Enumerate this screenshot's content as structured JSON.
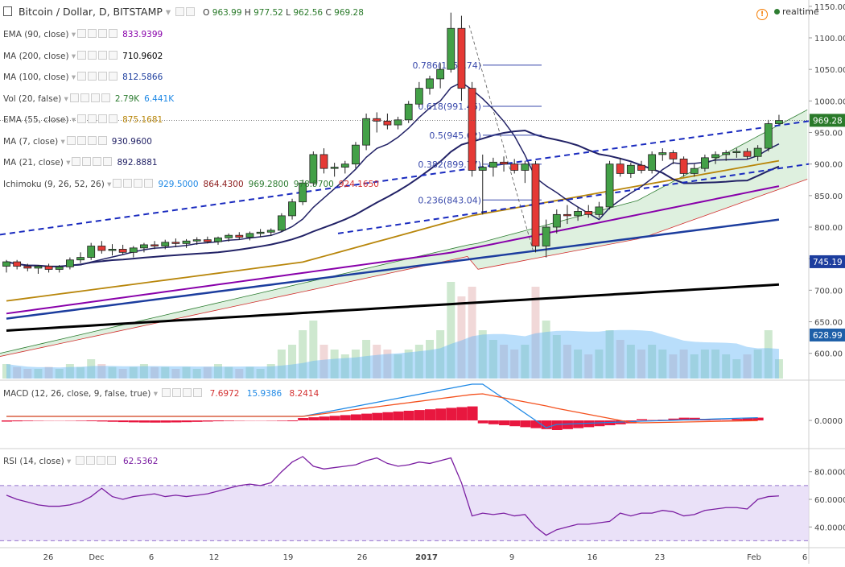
{
  "header": {
    "symbol": "Bitcoin / Dollar, D, BITSTAMP",
    "ohlc": {
      "o": "963.99",
      "h": "977.52",
      "l": "962.56",
      "c": "969.28"
    },
    "realtime": "realtime"
  },
  "indicators": [
    {
      "label": "EMA (90, close)",
      "values": [
        "833.9399"
      ],
      "colors": [
        "#8800aa"
      ]
    },
    {
      "label": "MA (200, close)",
      "values": [
        "710.9602"
      ],
      "colors": [
        "#000000"
      ]
    },
    {
      "label": "MA (100, close)",
      "values": [
        "812.5866"
      ],
      "colors": [
        "#1c3d9e"
      ]
    },
    {
      "label": "Vol (20, false)",
      "values": [
        "2.79K",
        "6.441K"
      ],
      "colors": [
        "#2e7d32",
        "#1e88e5"
      ]
    },
    {
      "label": "EMA (55, close)",
      "values": [
        "875.1681"
      ],
      "colors": [
        "#b8860b"
      ]
    },
    {
      "label": "MA (7, close)",
      "values": [
        "930.9600"
      ],
      "colors": [
        "#222266"
      ]
    },
    {
      "label": "MA (21, close)",
      "values": [
        "892.8881"
      ],
      "colors": [
        "#222266"
      ]
    },
    {
      "label": "Ichimoku (9, 26, 52, 26)",
      "values": [
        "929.5000",
        "864.4300",
        "969.2800",
        "978.9700",
        "924.1650"
      ],
      "colors": [
        "#1e88e5",
        "#8b1a1a",
        "#2e7d32",
        "#2e7d32",
        "#d32f2f"
      ]
    }
  ],
  "macd": {
    "label": "MACD (12, 26, close, 9, false, true)",
    "values": [
      "7.6972",
      "15.9386",
      "8.2414"
    ],
    "colors": [
      "#d32f2f",
      "#1e88e5",
      "#d32f2f"
    ]
  },
  "rsi": {
    "label": "RSI (14, close)",
    "value": "62.5362"
  },
  "price_axis": {
    "ticks": [
      "1150.00",
      "1100.00",
      "1050.00",
      "1000.00",
      "950.00",
      "900.00",
      "850.00",
      "800.00",
      "750.00",
      "700.00",
      "650.00",
      "600.00"
    ],
    "badges": [
      {
        "text": "969.28",
        "color": "#2a7a2a"
      },
      {
        "text": "745.19",
        "color": "#1c3d9e"
      },
      {
        "text": "628.99",
        "color": "#1e5fa8"
      }
    ]
  },
  "macd_axis": {
    "ticks": [
      "0.0000"
    ]
  },
  "rsi_axis": {
    "ticks": [
      "80.0000",
      "60.0000",
      "40.0000"
    ]
  },
  "time_axis": {
    "ticks": [
      "26",
      "Dec",
      "6",
      "12",
      "19",
      "26",
      "2017",
      "9",
      "16",
      "23",
      "Feb",
      "6"
    ]
  },
  "fib": [
    {
      "label": "0.786(1056.74)",
      "price": 1056.74
    },
    {
      "label": "0.618(991.46)",
      "price": 991.46
    },
    {
      "label": "0.5(945.62)",
      "price": 945.62
    },
    {
      "label": "0.382(899.77)",
      "price": 899.77
    },
    {
      "label": "0.236(843.04)",
      "price": 843.04
    }
  ],
  "chart_data": {
    "type": "candlestick",
    "title": "Bitcoin / Dollar, D, BITSTAMP",
    "ylim": [
      560,
      1160
    ],
    "candles": [
      {
        "o": 738,
        "h": 748,
        "l": 728,
        "c": 745
      },
      {
        "o": 745,
        "h": 748,
        "l": 733,
        "c": 738
      },
      {
        "o": 738,
        "h": 742,
        "l": 730,
        "c": 735
      },
      {
        "o": 735,
        "h": 740,
        "l": 726,
        "c": 738
      },
      {
        "o": 738,
        "h": 742,
        "l": 728,
        "c": 733
      },
      {
        "o": 733,
        "h": 740,
        "l": 728,
        "c": 737
      },
      {
        "o": 737,
        "h": 752,
        "l": 733,
        "c": 748
      },
      {
        "o": 748,
        "h": 760,
        "l": 743,
        "c": 752
      },
      {
        "o": 752,
        "h": 775,
        "l": 748,
        "c": 770
      },
      {
        "o": 770,
        "h": 778,
        "l": 758,
        "c": 763
      },
      {
        "o": 763,
        "h": 773,
        "l": 755,
        "c": 765
      },
      {
        "o": 765,
        "h": 772,
        "l": 757,
        "c": 760
      },
      {
        "o": 760,
        "h": 770,
        "l": 752,
        "c": 767
      },
      {
        "o": 767,
        "h": 775,
        "l": 760,
        "c": 772
      },
      {
        "o": 772,
        "h": 778,
        "l": 765,
        "c": 770
      },
      {
        "o": 770,
        "h": 780,
        "l": 765,
        "c": 776
      },
      {
        "o": 776,
        "h": 782,
        "l": 768,
        "c": 774
      },
      {
        "o": 774,
        "h": 781,
        "l": 767,
        "c": 778
      },
      {
        "o": 778,
        "h": 784,
        "l": 772,
        "c": 780
      },
      {
        "o": 780,
        "h": 785,
        "l": 774,
        "c": 777
      },
      {
        "o": 777,
        "h": 785,
        "l": 772,
        "c": 783
      },
      {
        "o": 783,
        "h": 790,
        "l": 777,
        "c": 787
      },
      {
        "o": 787,
        "h": 792,
        "l": 780,
        "c": 784
      },
      {
        "o": 784,
        "h": 793,
        "l": 779,
        "c": 790
      },
      {
        "o": 790,
        "h": 797,
        "l": 784,
        "c": 792
      },
      {
        "o": 792,
        "h": 798,
        "l": 786,
        "c": 795
      },
      {
        "o": 795,
        "h": 822,
        "l": 792,
        "c": 818
      },
      {
        "o": 818,
        "h": 845,
        "l": 812,
        "c": 840
      },
      {
        "o": 840,
        "h": 875,
        "l": 835,
        "c": 870
      },
      {
        "o": 870,
        "h": 920,
        "l": 865,
        "c": 915
      },
      {
        "o": 915,
        "h": 925,
        "l": 885,
        "c": 893
      },
      {
        "o": 893,
        "h": 902,
        "l": 880,
        "c": 895
      },
      {
        "o": 895,
        "h": 905,
        "l": 885,
        "c": 900
      },
      {
        "o": 900,
        "h": 935,
        "l": 893,
        "c": 930
      },
      {
        "o": 930,
        "h": 980,
        "l": 922,
        "c": 972
      },
      {
        "o": 972,
        "h": 982,
        "l": 950,
        "c": 968
      },
      {
        "o": 968,
        "h": 980,
        "l": 955,
        "c": 962
      },
      {
        "o": 962,
        "h": 975,
        "l": 955,
        "c": 970
      },
      {
        "o": 970,
        "h": 1000,
        "l": 965,
        "c": 995
      },
      {
        "o": 995,
        "h": 1030,
        "l": 990,
        "c": 1020
      },
      {
        "o": 1020,
        "h": 1040,
        "l": 1010,
        "c": 1035
      },
      {
        "o": 1035,
        "h": 1060,
        "l": 1020,
        "c": 1050
      },
      {
        "o": 1050,
        "h": 1140,
        "l": 1045,
        "c": 1115
      },
      {
        "o": 1115,
        "h": 1135,
        "l": 1000,
        "c": 1020
      },
      {
        "o": 1020,
        "h": 1030,
        "l": 880,
        "c": 890
      },
      {
        "o": 890,
        "h": 915,
        "l": 820,
        "c": 895
      },
      {
        "o": 895,
        "h": 910,
        "l": 880,
        "c": 903
      },
      {
        "o": 903,
        "h": 912,
        "l": 888,
        "c": 900
      },
      {
        "o": 900,
        "h": 908,
        "l": 885,
        "c": 890
      },
      {
        "o": 890,
        "h": 905,
        "l": 870,
        "c": 900
      },
      {
        "o": 900,
        "h": 905,
        "l": 760,
        "c": 770
      },
      {
        "o": 770,
        "h": 812,
        "l": 752,
        "c": 800
      },
      {
        "o": 800,
        "h": 828,
        "l": 790,
        "c": 820
      },
      {
        "o": 820,
        "h": 835,
        "l": 805,
        "c": 818
      },
      {
        "o": 818,
        "h": 832,
        "l": 810,
        "c": 825
      },
      {
        "o": 825,
        "h": 835,
        "l": 815,
        "c": 820
      },
      {
        "o": 820,
        "h": 840,
        "l": 815,
        "c": 832
      },
      {
        "o": 832,
        "h": 905,
        "l": 828,
        "c": 900
      },
      {
        "o": 900,
        "h": 910,
        "l": 880,
        "c": 885
      },
      {
        "o": 885,
        "h": 902,
        "l": 878,
        "c": 898
      },
      {
        "o": 898,
        "h": 905,
        "l": 885,
        "c": 890
      },
      {
        "o": 890,
        "h": 920,
        "l": 885,
        "c": 915
      },
      {
        "o": 915,
        "h": 925,
        "l": 905,
        "c": 918
      },
      {
        "o": 918,
        "h": 922,
        "l": 900,
        "c": 908
      },
      {
        "o": 908,
        "h": 912,
        "l": 880,
        "c": 885
      },
      {
        "o": 885,
        "h": 900,
        "l": 880,
        "c": 893
      },
      {
        "o": 893,
        "h": 915,
        "l": 888,
        "c": 910
      },
      {
        "o": 910,
        "h": 920,
        "l": 900,
        "c": 915
      },
      {
        "o": 915,
        "h": 922,
        "l": 905,
        "c": 918
      },
      {
        "o": 918,
        "h": 925,
        "l": 910,
        "c": 920
      },
      {
        "o": 920,
        "h": 925,
        "l": 908,
        "c": 912
      },
      {
        "o": 912,
        "h": 930,
        "l": 905,
        "c": 925
      },
      {
        "o": 925,
        "h": 970,
        "l": 920,
        "c": 964
      },
      {
        "o": 964,
        "h": 978,
        "l": 962,
        "c": 969
      }
    ],
    "volume_relative": [
      0.15,
      0.12,
      0.1,
      0.1,
      0.12,
      0.1,
      0.15,
      0.12,
      0.2,
      0.15,
      0.12,
      0.1,
      0.12,
      0.15,
      0.12,
      0.12,
      0.1,
      0.12,
      0.1,
      0.12,
      0.15,
      0.12,
      0.1,
      0.12,
      0.1,
      0.15,
      0.3,
      0.35,
      0.5,
      0.6,
      0.35,
      0.3,
      0.25,
      0.3,
      0.4,
      0.35,
      0.3,
      0.25,
      0.3,
      0.35,
      0.4,
      0.5,
      1.0,
      0.85,
      0.95,
      0.5,
      0.4,
      0.35,
      0.3,
      0.35,
      0.95,
      0.6,
      0.45,
      0.35,
      0.3,
      0.25,
      0.3,
      0.5,
      0.4,
      0.35,
      0.3,
      0.35,
      0.3,
      0.25,
      0.3,
      0.25,
      0.3,
      0.3,
      0.25,
      0.2,
      0.25,
      0.3,
      0.5,
      0.2
    ]
  }
}
